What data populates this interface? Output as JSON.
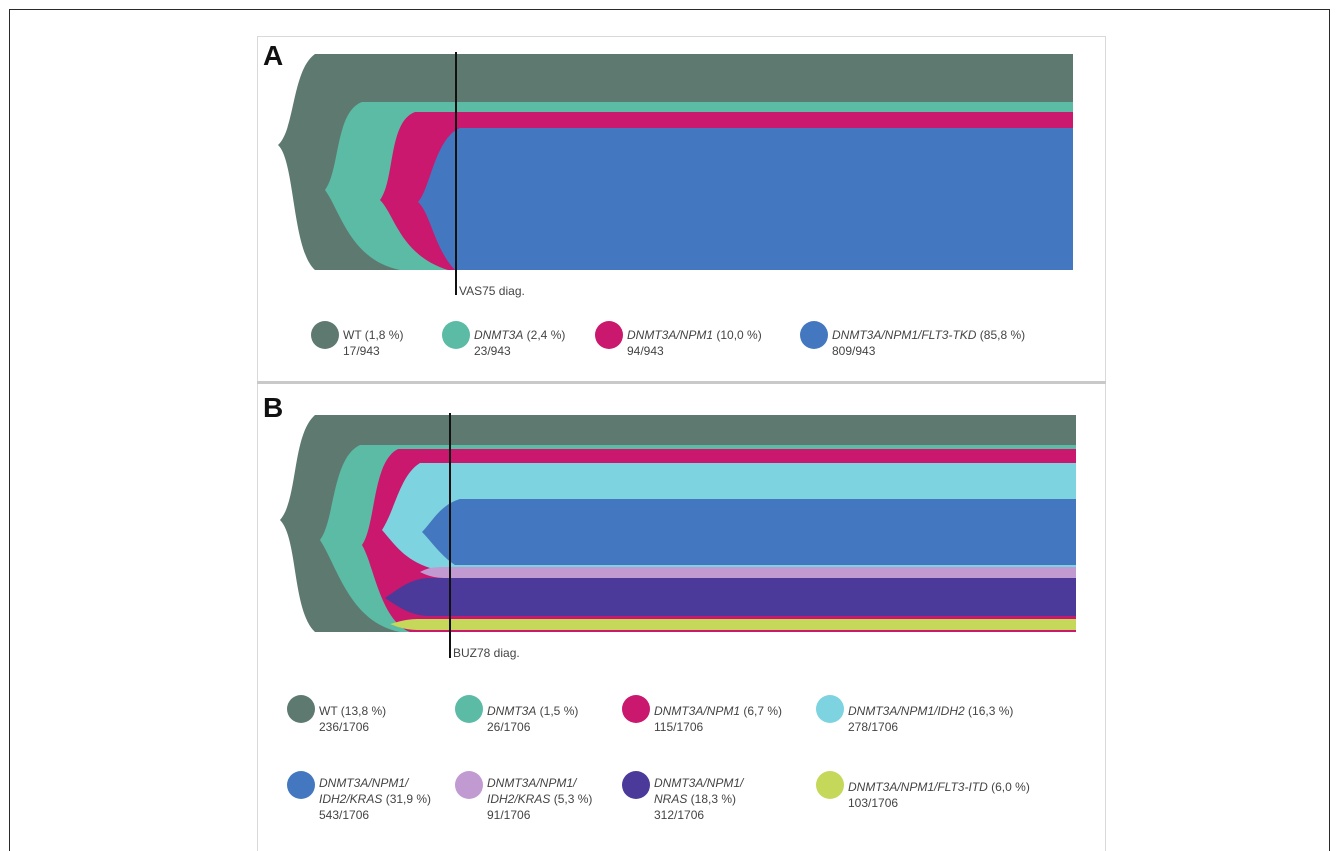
{
  "panel_a": {
    "label": "A",
    "diag_label": "VAS75 diag.",
    "legend": [
      {
        "geno": "",
        "plain": "WT (1,8 %)",
        "count": "17/943",
        "color": "#5e7a70"
      },
      {
        "geno": "DNMT3A",
        "plain": " (2,4 %)",
        "count": "23/943",
        "color": "#5bbba4"
      },
      {
        "geno": "DNMT3A/NPM1",
        "plain": " (10,0 %)",
        "count": "94/943",
        "color": "#c9186e"
      },
      {
        "geno": "DNMT3A/NPM1/FLT3-TKD",
        "plain": " (85,8 %)",
        "count": "809/943",
        "color": "#4378c0"
      }
    ]
  },
  "panel_b": {
    "label": "B",
    "diag_label": "BUZ78 diag.",
    "legend": [
      {
        "geno": "",
        "plain": "WT (13,8 %)",
        "count": "236/1706",
        "color": "#5e7a70"
      },
      {
        "geno": "DNMT3A",
        "plain": " (1,5 %)",
        "count": "26/1706",
        "color": "#5bbba4"
      },
      {
        "geno": "DNMT3A/NPM1",
        "plain": " (6,7 %)",
        "count": "115/1706",
        "color": "#c9186e"
      },
      {
        "geno": "DNMT3A/NPM1/IDH2",
        "plain": " (16,3 %)",
        "count": "278/1706",
        "color": "#7dd3df"
      },
      {
        "geno": "DNMT3A/NPM1/",
        "geno2": "IDH2/KRAS",
        "plain": " (31,9 %)",
        "count": "543/1706",
        "color": "#4378c0"
      },
      {
        "geno": "DNMT3A/NPM1/",
        "geno2": "IDH2/KRAS",
        "plain": " (5,3 %)",
        "count": "91/1706",
        "color": "#c19ad1"
      },
      {
        "geno": "DNMT3A/NPM1/",
        "geno2": "NRAS",
        "plain": " (18,3 %)",
        "count": "312/1706",
        "color": "#4b3a9a"
      },
      {
        "geno": "DNMT3A/NPM1/FLT3-ITD",
        "plain": " (6,0 %)",
        "count": "103/1706",
        "color": "#c6d85a"
      }
    ]
  }
}
